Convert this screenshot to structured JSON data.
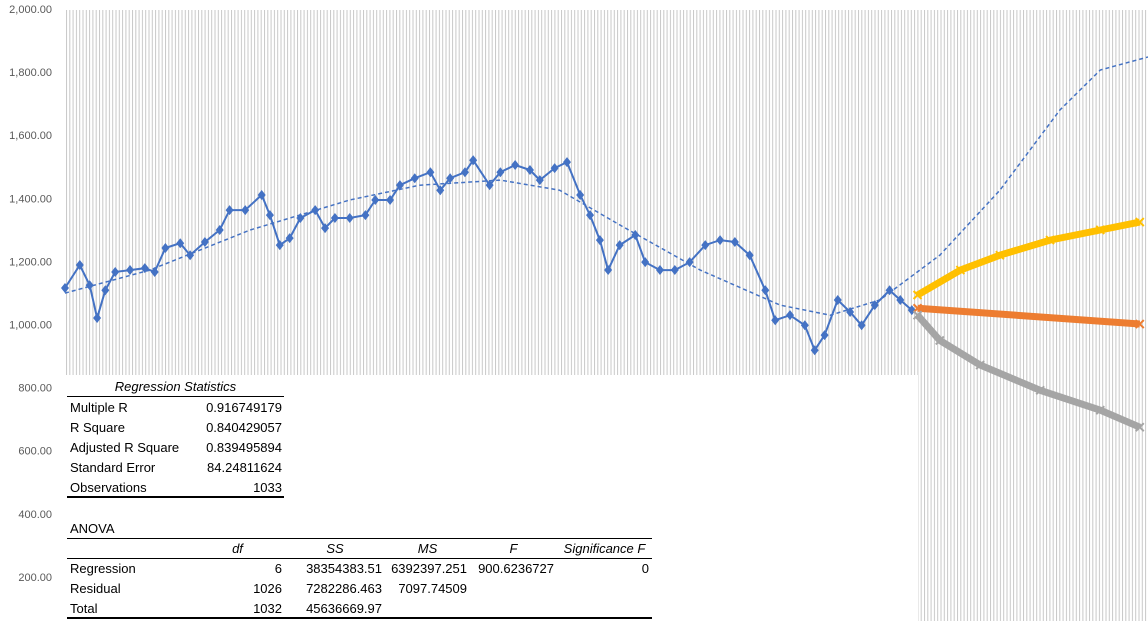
{
  "chart_data": {
    "type": "line",
    "xlim": [
      0,
      1316
    ],
    "ylim": [
      64,
      2000
    ],
    "yticks": [
      {
        "value": 200,
        "label": "200.00"
      },
      {
        "value": 400,
        "label": "400.00"
      },
      {
        "value": 600,
        "label": "600.00"
      },
      {
        "value": 800,
        "label": "800.00"
      },
      {
        "value": 1000,
        "label": "1,000.00"
      },
      {
        "value": 1200,
        "label": "1,200.00"
      },
      {
        "value": 1400,
        "label": "1,400.00"
      },
      {
        "value": 1600,
        "label": "1,600.00"
      },
      {
        "value": 1800,
        "label": "1,800.00"
      },
      {
        "value": 2000,
        "label": "2,000.00"
      }
    ],
    "x_grid": true,
    "series": [
      {
        "color": "#4472c4",
        "marker": "diamond",
        "dashed": false,
        "x": [
          0,
          18,
          30,
          39,
          49,
          61,
          79,
          97,
          109,
          122,
          140,
          152,
          170,
          188,
          200,
          219,
          239,
          249,
          261,
          273,
          286,
          304,
          316,
          328,
          346,
          365,
          377,
          395,
          407,
          425,
          444,
          456,
          468,
          486,
          496,
          516,
          529,
          547,
          565,
          577,
          595,
          610,
          626,
          638,
          650,
          660,
          674,
          693,
          705,
          723,
          741,
          759,
          778,
          796,
          814,
          832,
          851,
          863,
          881,
          899,
          911,
          923,
          939,
          954,
          968,
          984,
          1002,
          1015,
          1029
        ],
        "values": [
          1119,
          1192,
          1128,
          1024,
          1112,
          1170,
          1176,
          1182,
          1170,
          1246,
          1261,
          1223,
          1265,
          1303,
          1366,
          1366,
          1414,
          1350,
          1255,
          1277,
          1341,
          1366,
          1309,
          1341,
          1341,
          1350,
          1398,
          1398,
          1445,
          1467,
          1486,
          1429,
          1467,
          1486,
          1524,
          1445,
          1486,
          1509,
          1493,
          1461,
          1499,
          1518,
          1414,
          1350,
          1271,
          1176,
          1255,
          1287,
          1201,
          1176,
          1176,
          1201,
          1255,
          1271,
          1265,
          1223,
          1112,
          1017,
          1033,
          1001,
          922,
          970,
          1081,
          1043,
          1001,
          1065,
          1112,
          1081,
          1049
        ]
      },
      {
        "color": "#4472c4",
        "marker": "none",
        "dashed": true,
        "x": [
          0,
          103,
          225,
          346,
          431,
          529,
          601,
          674,
          772,
          869,
          930,
          990,
          1063,
          1136,
          1209,
          1258,
          1316
        ],
        "values": [
          1103,
          1176,
          1303,
          1398,
          1445,
          1461,
          1429,
          1319,
          1176,
          1065,
          1033,
          1081,
          1223,
          1429,
          1683,
          1810,
          1851
        ]
      },
      {
        "color": "#ffc000",
        "marker": "x",
        "dashed": false,
        "x": [
          1036,
          1088,
          1136,
          1197,
          1258,
          1306
        ],
        "values": [
          1097,
          1176,
          1223,
          1271,
          1303,
          1328
        ]
      },
      {
        "color": "#ed7d31",
        "marker": "x",
        "dashed": false,
        "x": [
          1036,
          1306
        ],
        "values": [
          1055,
          1005
        ]
      },
      {
        "color": "#a5a5a5",
        "marker": "x",
        "dashed": false,
        "x": [
          1036,
          1063,
          1112,
          1185,
          1258,
          1306
        ],
        "values": [
          1033,
          953,
          875,
          795,
          732,
          678
        ]
      }
    ]
  },
  "regression_statistics": {
    "title": "Regression Statistics",
    "rows": [
      [
        "Multiple R",
        0.916749179
      ],
      [
        "R Square",
        0.840429057
      ],
      [
        "Adjusted R Square",
        0.839495894
      ],
      [
        "Standard Error",
        84.24811624
      ],
      [
        "Observations",
        1033
      ]
    ]
  },
  "anova": {
    "title": "ANOVA",
    "header": [
      "df",
      "SS",
      "MS",
      "F",
      "Significance F"
    ],
    "rows": [
      {
        "label": "Regression",
        "cells": [
          6,
          38354383.51,
          6392397.251,
          900.6236727,
          0
        ]
      },
      {
        "label": "Residual",
        "cells": [
          1026,
          7282286.463,
          7097.74509
        ]
      },
      {
        "label": "Total",
        "cells": [
          1032,
          45636669.97
        ]
      }
    ]
  }
}
